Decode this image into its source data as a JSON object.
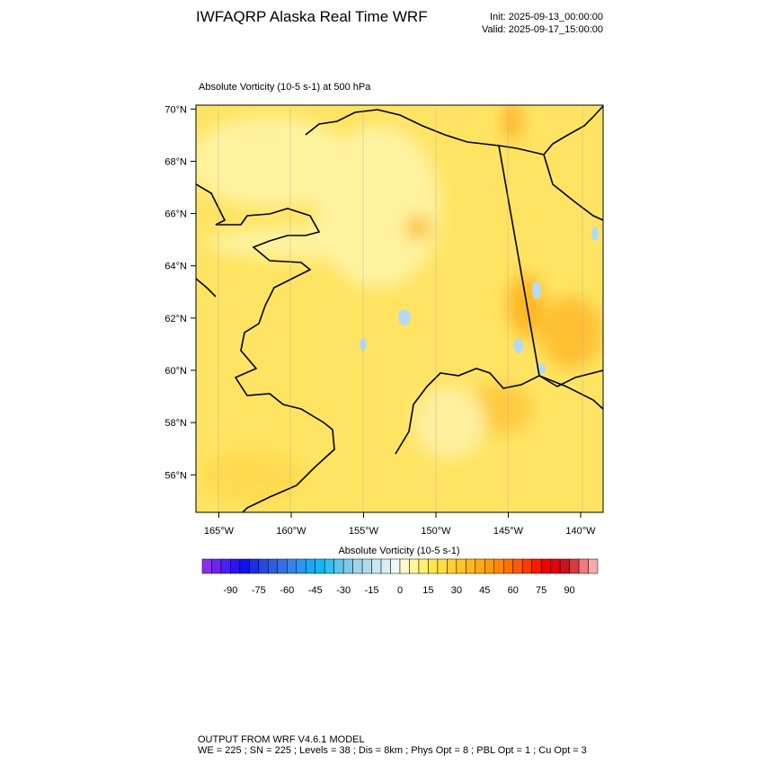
{
  "header": {
    "title": "IWFAQRP Alaska Real Time WRF",
    "init": "Init: 2025-09-13_00:00:00",
    "valid": "Valid: 2025-09-17_15:00:00"
  },
  "map": {
    "field_label": "Absolute Vorticity   (10-5 s-1)     at   500 hPa",
    "lat_ticks": [
      {
        "value": 70,
        "label": "70°N"
      },
      {
        "value": 68,
        "label": "68°N"
      },
      {
        "value": 66,
        "label": "66°N"
      },
      {
        "value": 64,
        "label": "64°N"
      },
      {
        "value": 62,
        "label": "62°N"
      },
      {
        "value": 60,
        "label": "60°N"
      },
      {
        "value": 58,
        "label": "58°N"
      },
      {
        "value": 56,
        "label": "56°N"
      }
    ],
    "lon_ticks": [
      {
        "value": -165,
        "label": "165°W"
      },
      {
        "value": -160,
        "label": "160°W"
      },
      {
        "value": -155,
        "label": "155°W"
      },
      {
        "value": -150,
        "label": "150°W"
      },
      {
        "value": -145,
        "label": "145°W"
      },
      {
        "value": -140,
        "label": "140°W"
      }
    ]
  },
  "colorbar": {
    "title": "Absolute Vorticity  (10-5 s-1)",
    "lim": [
      -105,
      105
    ],
    "colors": [
      "#8b2cf0",
      "#6a25f0",
      "#4b1ef5",
      "#2a14f8",
      "#1010f5",
      "#1a2ee8",
      "#2548e0",
      "#2d5ee0",
      "#3470e5",
      "#3a82ea",
      "#2a96f0",
      "#1aa8f5",
      "#10b8f5",
      "#30c0f0",
      "#5ac4ec",
      "#7ccbe8",
      "#9ed6ec",
      "#b0dcec",
      "#c8e6f2",
      "#d8eef4",
      "#eef7fa",
      "#fffacd",
      "#fff59a",
      "#ffee70",
      "#ffe550",
      "#ffdc40",
      "#ffd030",
      "#ffc420",
      "#ffb818",
      "#ffaa10",
      "#ff9a08",
      "#ff8800",
      "#ff7200",
      "#ff5a00",
      "#ff3c00",
      "#ff1a00",
      "#f00000",
      "#e00010",
      "#cc1020",
      "#d83a40",
      "#ee7a80",
      "#f8aaaa"
    ],
    "ticks": [
      -90,
      -75,
      -60,
      -45,
      -30,
      -15,
      0,
      15,
      30,
      45,
      60,
      75,
      90
    ]
  },
  "footer": {
    "line1": "OUTPUT FROM WRF V4.6.1 MODEL",
    "line2": "WE = 225 ; SN = 225 ; Levels = 38 ; Dis = 8km ; Phys Opt = 8 ; PBL Opt = 1 ; Cu Opt = 3"
  }
}
